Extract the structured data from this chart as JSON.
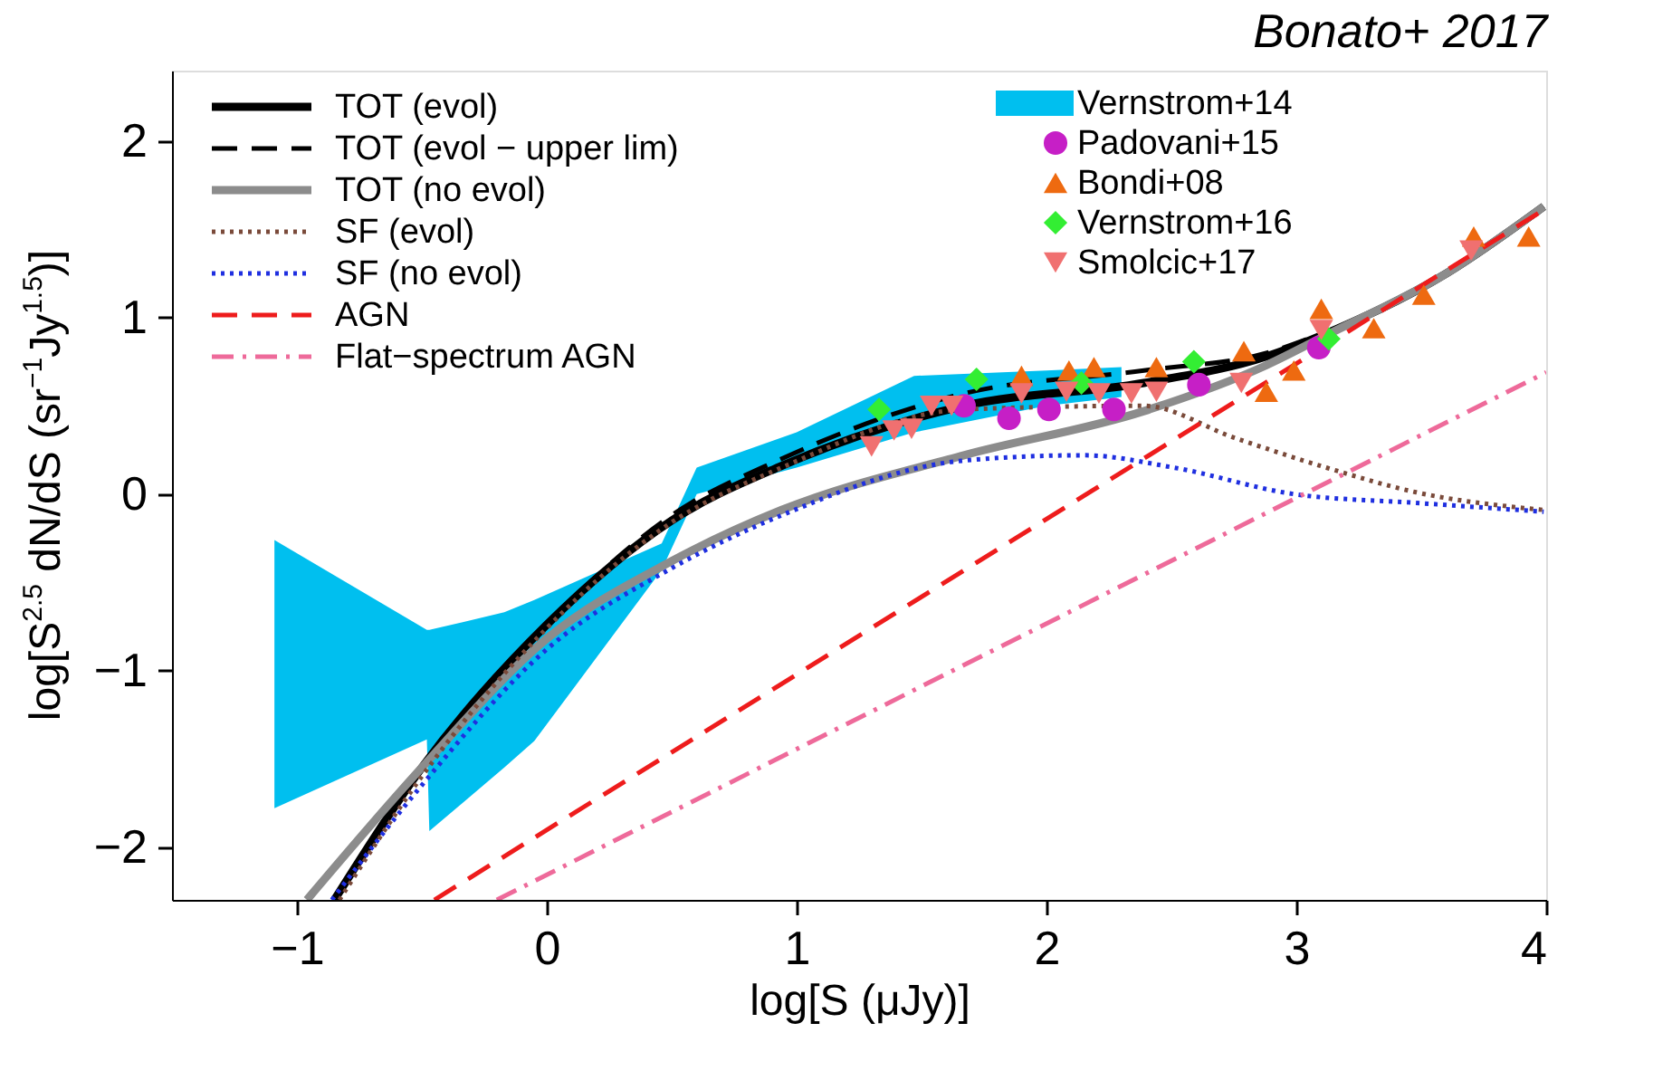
{
  "chart_data": {
    "type": "line",
    "title": "Bonato+ 2017",
    "xlabel": "log[S (μJy)]",
    "ylabel": "log[S$^{2.5}$ dN/dS (sr$^{−1}$Jy$^{1.5}$)]",
    "xlim": [
      -1.5,
      4
    ],
    "ylim": [
      -2.3,
      2.4
    ],
    "xticks": [
      -1,
      0,
      1,
      2,
      3,
      4
    ],
    "yticks": [
      -2,
      -1,
      0,
      1,
      2
    ],
    "grid": false,
    "legend": "top",
    "series": [
      {
        "name": "TOT (evol)",
        "color": "#000000",
        "line_style": "solid",
        "x": [
          -0.85,
          -0.5,
          0,
          0.5,
          0.94,
          1.67,
          2.39,
          2.88,
          3.12,
          3.6,
          3.99
        ],
        "values": [
          -2.3,
          -1.55,
          -0.74,
          -0.15,
          0.16,
          0.5,
          0.63,
          0.78,
          0.91,
          1.25,
          1.63
        ]
      },
      {
        "name": "TOT (evol − upper lim)",
        "color": "#000000",
        "line_style": "dashed",
        "x": [
          -0.85,
          -0.5,
          0,
          0.5,
          0.94,
          1.67,
          2.39,
          2.88,
          3.12,
          3.6,
          3.99
        ],
        "values": [
          -2.3,
          -1.55,
          -0.74,
          -0.12,
          0.2,
          0.57,
          0.7,
          0.8,
          0.92,
          1.25,
          1.63
        ]
      },
      {
        "name": "TOT (no evol)",
        "color": "#8c8c8c",
        "line_style": "solid",
        "x": [
          -0.96,
          -0.5,
          0,
          0.5,
          0.94,
          1.67,
          2.39,
          2.88,
          3.12,
          3.6,
          3.99
        ],
        "values": [
          -2.3,
          -1.55,
          -0.82,
          -0.38,
          -0.09,
          0.22,
          0.47,
          0.73,
          0.9,
          1.25,
          1.63
        ]
      },
      {
        "name": "SF (evol)",
        "color": "#7a4a3a",
        "line_style": "dotted",
        "x": [
          -0.83,
          -0.5,
          0,
          0.5,
          0.94,
          1.67,
          2.39,
          2.75,
          3.12,
          3.48,
          3.99
        ],
        "values": [
          -2.3,
          -1.6,
          -0.76,
          -0.16,
          0.15,
          0.48,
          0.5,
          0.32,
          0.15,
          0.01,
          -0.09
        ]
      },
      {
        "name": "SF (no evol)",
        "color": "#1f2fe0",
        "line_style": "dotted",
        "x": [
          -0.86,
          -0.5,
          0,
          0.5,
          0.94,
          1.67,
          2.15,
          2.51,
          2.99,
          3.48,
          3.99
        ],
        "values": [
          -2.3,
          -1.65,
          -0.88,
          -0.42,
          -0.12,
          0.19,
          0.22,
          0.15,
          0.0,
          -0.05,
          -0.1
        ]
      },
      {
        "name": "AGN",
        "color": "#ee1c1c",
        "line_style": "dashed",
        "x": [
          -0.45,
          4
        ],
        "values": [
          -2.3,
          1.62
        ]
      },
      {
        "name": "Flat−spectrum AGN",
        "color": "#ee6a9a",
        "line_style": "dashdot",
        "x": [
          -0.2,
          4
        ],
        "values": [
          -2.3,
          0.69
        ]
      },
      {
        "name": "Vernstrom+14",
        "type": "area",
        "color": "#00bfef",
        "x": [
          -1.09,
          -0.48,
          -0.47,
          -0.17,
          -0.05,
          0.46,
          0.6,
          1.0,
          1.47,
          2.0,
          2.3
        ],
        "values": [
          null,
          null,
          null,
          null,
          null,
          null,
          null,
          null,
          null,
          null,
          null
        ],
        "lower": [
          -1.78,
          -1.39,
          -1.91,
          -1.55,
          -1.4,
          -0.43,
          0.0,
          0.15,
          0.35,
          0.5,
          0.55
        ],
        "upper": [
          -0.26,
          -0.77,
          -0.77,
          -0.67,
          -0.6,
          -0.28,
          0.15,
          0.35,
          0.67,
          0.7,
          0.72
        ]
      },
      {
        "name": "Padovani+15",
        "type": "scatter",
        "marker": "circle",
        "color": "#c61fc6",
        "x": [
          1.67,
          1.85,
          2.01,
          2.27,
          2.61,
          3.09
        ],
        "values": [
          0.5,
          0.43,
          0.48,
          0.48,
          0.62,
          0.83
        ]
      },
      {
        "name": "Bondi+08",
        "type": "scatter",
        "marker": "triangle",
        "color": "#ee6a10",
        "x": [
          1.9,
          2.09,
          2.19,
          2.44,
          2.79,
          2.88,
          2.99,
          3.1,
          3.31,
          3.51,
          3.71,
          3.93
        ],
        "values": [
          0.67,
          0.7,
          0.72,
          0.72,
          0.81,
          0.58,
          0.7,
          1.05,
          0.94,
          1.13,
          1.46,
          1.46
        ]
      },
      {
        "name": "Vernstrom+16",
        "type": "scatter",
        "marker": "diamond",
        "color": "#33ee33",
        "x": [
          1.33,
          1.72,
          2.14,
          2.59,
          3.13
        ],
        "values": [
          0.48,
          0.65,
          0.63,
          0.75,
          0.88
        ]
      },
      {
        "name": "Smolcic+17",
        "type": "scatter",
        "marker": "triangle-down",
        "color": "#f07070",
        "x": [
          1.3,
          1.39,
          1.46,
          1.54,
          1.62,
          1.9,
          2.08,
          2.21,
          2.34,
          2.44,
          2.78,
          3.1,
          3.7
        ],
        "values": [
          0.27,
          0.36,
          0.37,
          0.5,
          0.5,
          0.57,
          0.58,
          0.57,
          0.57,
          0.58,
          0.63,
          0.93,
          1.38
        ]
      }
    ]
  }
}
